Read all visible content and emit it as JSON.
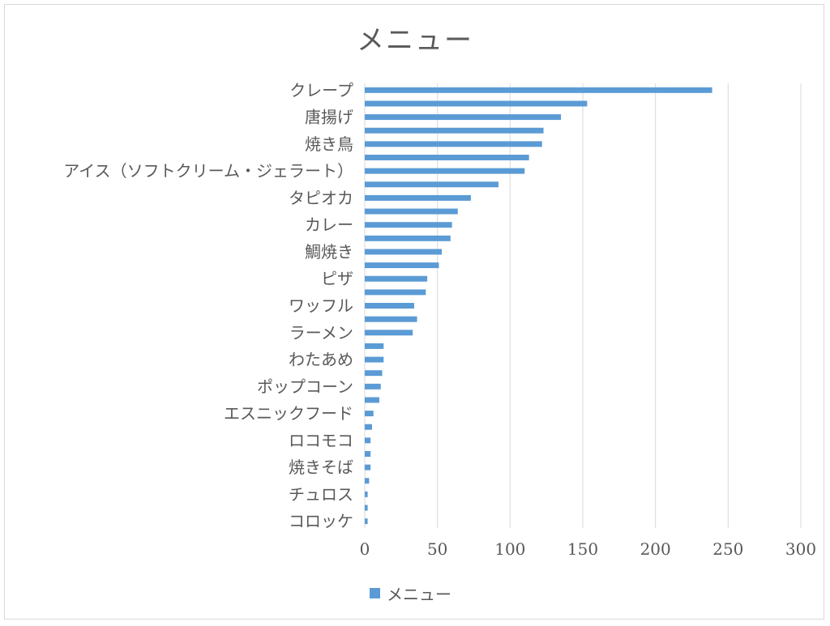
{
  "chart_data": {
    "type": "bar",
    "orientation": "horizontal",
    "title": "メニュー",
    "categories": [
      "クレープ",
      "",
      "唐揚げ",
      "",
      "焼き鳥",
      "",
      "アイス（ソフトクリーム・ジェラート）",
      "",
      "タピオカ",
      "",
      "カレー",
      "",
      "鯛焼き",
      "",
      "ピザ",
      "",
      "ワッフル",
      "",
      "ラーメン",
      "",
      "わたあめ",
      "",
      "ポップコーン",
      "",
      "エスニックフード",
      "",
      "ロコモコ",
      "",
      "焼きそば",
      "",
      "チュロス",
      "",
      "コロッケ"
    ],
    "series": [
      {
        "name": "メニュー",
        "color": "#5b9bd5",
        "values": [
          239,
          153,
          135,
          123,
          122,
          113,
          110,
          92,
          73,
          64,
          60,
          59,
          53,
          51,
          43,
          42,
          34,
          36,
          33,
          13,
          13,
          12,
          11,
          10,
          6,
          5,
          4,
          4,
          4,
          3,
          2,
          2,
          2
        ]
      }
    ],
    "xlim": [
      0,
      300
    ],
    "x_ticks": [
      0,
      50,
      100,
      150,
      200,
      250,
      300
    ],
    "grid": true,
    "legend_position": "bottom"
  },
  "legend": {
    "label": "メニュー"
  }
}
